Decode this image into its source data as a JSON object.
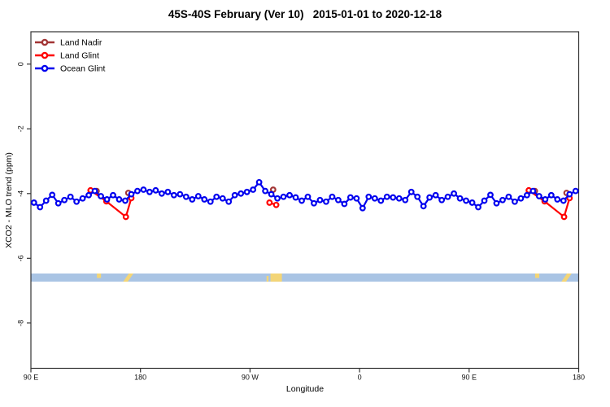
{
  "chart_data": {
    "type": "line",
    "title": "45S-40S February (Ver 10)   2015-01-01 to 2020-12-18",
    "xlabel": "Longitude",
    "ylabel": "XCO2 - MLO trend (ppm)",
    "xlim": [
      90,
      540
    ],
    "ylim": [
      -9.4,
      1.0
    ],
    "grid": false,
    "legend_position": "top-left",
    "x_ticks": [
      {
        "pos": 90,
        "label": "90 E"
      },
      {
        "pos": 180,
        "label": "180"
      },
      {
        "pos": 270,
        "label": "90 W"
      },
      {
        "pos": 360,
        "label": "0"
      },
      {
        "pos": 450,
        "label": "90 E"
      },
      {
        "pos": 540,
        "label": "180"
      }
    ],
    "y_ticks": [
      {
        "pos": 0,
        "label": "0"
      },
      {
        "pos": -2,
        "label": "-2"
      },
      {
        "pos": -4,
        "label": "-4"
      },
      {
        "pos": -6,
        "label": "-6"
      },
      {
        "pos": -8,
        "label": "-8"
      }
    ],
    "series": [
      {
        "name": "Land Nadir",
        "color": "#A23535",
        "segments": [
          [
            [
              144,
              -3.92
            ]
          ],
          [
            [
              170,
              -3.98
            ]
          ],
          [
            [
              289,
              -3.88
            ]
          ],
          [
            [
              504,
              -3.92
            ]
          ],
          [
            [
              530,
              -3.98
            ]
          ]
        ]
      },
      {
        "name": "Land Glint",
        "color": "#FF0000",
        "segments": [
          [
            [
              139,
              -3.9
            ],
            [
              152,
              -4.24
            ],
            [
              168,
              -4.72
            ],
            [
              172.5,
              -4.14
            ]
          ],
          [
            [
              286,
              -4.28
            ],
            [
              291.5,
              -4.35
            ]
          ],
          [
            [
              499,
              -3.9
            ],
            [
              512,
              -4.24
            ],
            [
              528,
              -4.72
            ],
            [
              532.5,
              -4.14
            ]
          ]
        ]
      },
      {
        "name": "Ocean Glint",
        "color": "#0000EE",
        "x_start": 92.5,
        "x_step": 5,
        "values": [
          -4.28,
          -4.42,
          -4.22,
          -4.04,
          -4.3,
          -4.2,
          -4.1,
          -4.25,
          -4.15,
          -4.05,
          -3.92,
          -4.08,
          -4.18,
          -4.05,
          -4.18,
          -4.22,
          -4.02,
          -3.92,
          -3.88,
          -3.95,
          -3.9,
          -4.0,
          -3.95,
          -4.05,
          -4.02,
          -4.1,
          -4.18,
          -4.08,
          -4.18,
          -4.25,
          -4.1,
          -4.15,
          -4.25,
          -4.05,
          -4.0,
          -3.95,
          -3.88,
          -3.65,
          -3.92,
          -4.02,
          -4.15,
          -4.1,
          -4.05,
          -4.12,
          -4.22,
          -4.1,
          -4.3,
          -4.2,
          -4.25,
          -4.1,
          -4.2,
          -4.32,
          -4.12,
          -4.15,
          -4.45,
          -4.1,
          -4.15,
          -4.22,
          -4.1,
          -4.12,
          -4.15,
          -4.2,
          -3.95,
          -4.1,
          -4.39,
          -4.12,
          -4.05,
          -4.2,
          -4.1,
          -4.0,
          -4.15,
          -4.22,
          -4.28,
          -4.42,
          -4.22,
          -4.04,
          -4.3,
          -4.2,
          -4.1,
          -4.25,
          -4.15,
          -4.05,
          -3.92,
          -4.08,
          -4.18,
          -4.05,
          -4.18,
          -4.22,
          -4.02,
          -3.92
        ]
      }
    ],
    "map_band": {
      "y_top": -6.47,
      "y_bottom": -6.72,
      "ocean_color": "#A9C4E4",
      "land_color": "#F3D577",
      "land_patches": [
        {
          "x0": 144.2,
          "x1": 147.6,
          "shape": "rect",
          "top": 0,
          "bottom": 0.55
        },
        {
          "x0": 165.8,
          "x1": 174.2,
          "shape": "slant",
          "top": 0,
          "bottom": 1
        },
        {
          "x0": 283.6,
          "x1": 285.2,
          "shape": "rect",
          "top": 0.3,
          "bottom": 1
        },
        {
          "x0": 286.8,
          "x1": 296.2,
          "shape": "rect",
          "top": 0,
          "bottom": 1
        },
        {
          "x0": 504.2,
          "x1": 507.6,
          "shape": "rect",
          "top": 0,
          "bottom": 0.55
        },
        {
          "x0": 525.8,
          "x1": 534.2,
          "shape": "slant",
          "top": 0,
          "bottom": 1
        }
      ]
    }
  },
  "legend": {
    "items": [
      {
        "label": "Land Nadir",
        "color": "#A23535"
      },
      {
        "label": "Land Glint",
        "color": "#FF0000"
      },
      {
        "label": "Ocean Glint",
        "color": "#0000EE"
      }
    ]
  },
  "style": {
    "axis_color": "#333333",
    "marker_fill": "#FFFFFF"
  }
}
